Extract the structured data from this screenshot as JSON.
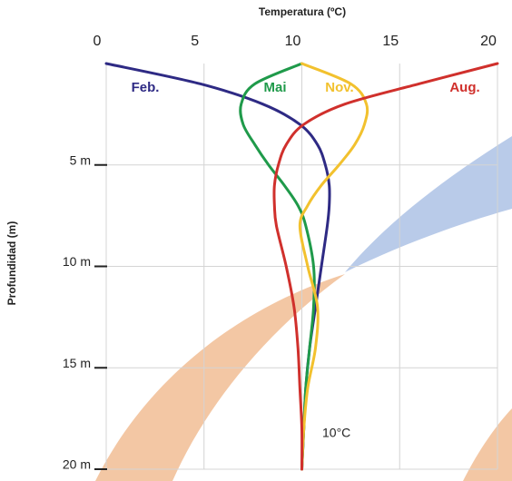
{
  "chart_data": {
    "type": "line",
    "title": "Temperatura (ºC)",
    "y_label": "Profundidad (m)",
    "annotation": "10°C",
    "depths": [
      0,
      1,
      2,
      3,
      4,
      5,
      6,
      7,
      8,
      10,
      12,
      14,
      16,
      18,
      20
    ],
    "series": [
      {
        "name": "Feb.",
        "color": "#2e2a84",
        "values": [
          0,
          4.8,
          8.0,
          9.9,
          10.8,
          11.2,
          11.4,
          11.4,
          11.3,
          11.0,
          10.7,
          10.4,
          10.2,
          10.1,
          10.0
        ]
      },
      {
        "name": "Mai",
        "color": "#1f9a4a",
        "values": [
          10.0,
          7.6,
          6.9,
          7.0,
          7.6,
          8.3,
          9.1,
          9.8,
          10.2,
          10.6,
          10.6,
          10.4,
          10.2,
          10.1,
          10.0
        ]
      },
      {
        "name": "Nov.",
        "color": "#f2c12e",
        "values": [
          10.0,
          12.5,
          13.3,
          13.2,
          12.7,
          11.9,
          11.0,
          10.3,
          9.9,
          10.3,
          10.8,
          10.7,
          10.3,
          10.1,
          10.0
        ]
      },
      {
        "name": "Aug.",
        "color": "#d0302c",
        "values": [
          20.0,
          16.0,
          12.2,
          10.1,
          9.2,
          8.8,
          8.6,
          8.6,
          8.7,
          9.2,
          9.6,
          9.8,
          9.9,
          10.0,
          10.0
        ]
      }
    ],
    "xlim": [
      0,
      20
    ],
    "xticks": [
      0,
      5,
      10,
      15,
      20
    ],
    "ylim": [
      0,
      20
    ],
    "yticks": [
      {
        "value": 5,
        "label": "5 m"
      },
      {
        "value": 10,
        "label": "10 m"
      },
      {
        "value": 15,
        "label": "15 m"
      },
      {
        "value": 20,
        "label": "20 m"
      }
    ],
    "grid": true
  }
}
